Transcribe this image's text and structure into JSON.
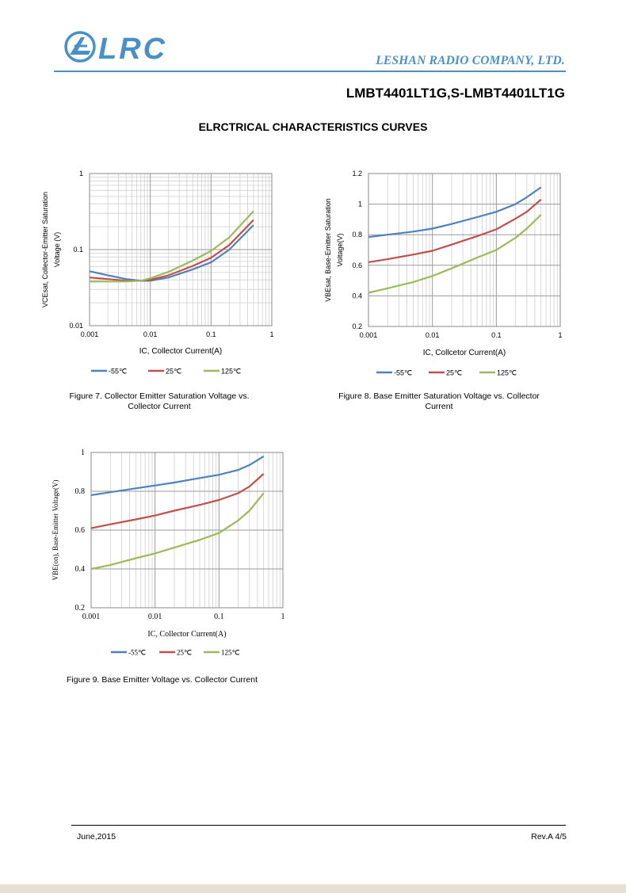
{
  "header": {
    "logo_text": "LRC",
    "company": "LESHAN RADIO COMPANY, LTD.",
    "part_number": "LMBT4401LT1G,S-LMBT4401LT1G",
    "section_title": "ELRCTRICAL CHARACTERISTICS CURVES"
  },
  "colors": {
    "brand": "#4a90c8",
    "m55": "#4f81bd",
    "r25": "#c0504d",
    "g125": "#9bbb59"
  },
  "chart_data": [
    {
      "type": "line",
      "id": "fig7",
      "xlabel": "IC, Collector Current(A)",
      "ylabel": "VCEsat, Collector-Emitter Saturation Voltage (V)",
      "ylabel_lines": [
        "VCEsat, Collector-Emitter Saturation",
        "Voltage (V)"
      ],
      "xscale": "log",
      "yscale": "log",
      "xlim": [
        0.001,
        1
      ],
      "ylim": [
        0.01,
        1
      ],
      "xticks": [
        "0.001",
        "0.01",
        "0.1",
        "1"
      ],
      "yticks": [
        "1",
        "0.1",
        "0.01"
      ],
      "legend": [
        "-55℃",
        "25℃",
        "125℃"
      ],
      "series": [
        {
          "name": "-55℃",
          "color": "#4f81bd",
          "x": [
            0.001,
            0.002,
            0.004,
            0.007,
            0.01,
            0.02,
            0.05,
            0.1,
            0.2,
            0.5
          ],
          "y": [
            0.052,
            0.046,
            0.041,
            0.039,
            0.039,
            0.043,
            0.055,
            0.068,
            0.1,
            0.21
          ]
        },
        {
          "name": "25℃",
          "color": "#c0504d",
          "x": [
            0.001,
            0.002,
            0.004,
            0.007,
            0.01,
            0.02,
            0.05,
            0.1,
            0.2,
            0.5
          ],
          "y": [
            0.043,
            0.041,
            0.039,
            0.039,
            0.04,
            0.046,
            0.061,
            0.078,
            0.115,
            0.245
          ]
        },
        {
          "name": "125℃",
          "color": "#9bbb59",
          "x": [
            0.001,
            0.002,
            0.004,
            0.007,
            0.01,
            0.02,
            0.05,
            0.1,
            0.2,
            0.5
          ],
          "y": [
            0.038,
            0.038,
            0.038,
            0.039,
            0.042,
            0.051,
            0.072,
            0.096,
            0.145,
            0.32
          ]
        }
      ],
      "caption": "Figure 7. Collector Emitter Saturation Voltage vs. Collector Current",
      "caption_lines": [
        "Figure 7. Collector Emitter Saturation Voltage vs.",
        "Collector Current"
      ]
    },
    {
      "type": "line",
      "id": "fig8",
      "xlabel": "IC, Collcetor Current(A)",
      "ylabel": "VBEsat, Base-Emitter Saturation Voltage(V)",
      "ylabel_lines": [
        "VBEsat, Base-Emitter Saturation",
        "Voltage(V)"
      ],
      "xscale": "log",
      "yscale": "linear",
      "xlim": [
        0.001,
        1
      ],
      "ylim": [
        0.2,
        1.2
      ],
      "xticks": [
        "0.001",
        "0.01",
        "0.1",
        "1"
      ],
      "yticks": [
        "1.2",
        "1",
        "0.8",
        "0.6",
        "0.4",
        "0.2"
      ],
      "legend": [
        "-55℃",
        "25℃",
        "125℃"
      ],
      "series": [
        {
          "name": "-55℃",
          "color": "#4f81bd",
          "x": [
            0.001,
            0.002,
            0.005,
            0.01,
            0.02,
            0.05,
            0.1,
            0.2,
            0.3,
            0.5
          ],
          "y": [
            0.785,
            0.8,
            0.82,
            0.84,
            0.87,
            0.915,
            0.95,
            1.0,
            1.045,
            1.11
          ]
        },
        {
          "name": "25℃",
          "color": "#c0504d",
          "x": [
            0.001,
            0.002,
            0.005,
            0.01,
            0.02,
            0.05,
            0.1,
            0.2,
            0.3,
            0.5
          ],
          "y": [
            0.62,
            0.64,
            0.67,
            0.695,
            0.735,
            0.79,
            0.835,
            0.905,
            0.95,
            1.03
          ]
        },
        {
          "name": "125℃",
          "color": "#9bbb59",
          "x": [
            0.001,
            0.002,
            0.005,
            0.01,
            0.02,
            0.05,
            0.1,
            0.2,
            0.3,
            0.5
          ],
          "y": [
            0.42,
            0.45,
            0.49,
            0.53,
            0.58,
            0.65,
            0.7,
            0.78,
            0.84,
            0.93
          ]
        }
      ],
      "caption": "Figure 8. Base Emitter Saturation Voltage vs. Collector Current",
      "caption_lines": [
        "Figure 8.  Base Emitter Saturation Voltage vs. Collector",
        "Current"
      ]
    },
    {
      "type": "line",
      "id": "fig9",
      "xlabel": "IC, Collector Current(A)",
      "ylabel": "VBE(on), Base-Emitter Voltage(V)",
      "ylabel_lines": [
        "VBE(on), Base-Emitter Voltage(V)"
      ],
      "xscale": "log",
      "yscale": "linear",
      "xlim": [
        0.001,
        1
      ],
      "ylim": [
        0.2,
        1
      ],
      "xticks": [
        "0.001",
        "0.01",
        "0.1",
        "1"
      ],
      "yticks": [
        "1",
        "0.8",
        "0.6",
        "0.4",
        "0.2"
      ],
      "legend": [
        "-55℃",
        "25℃",
        "125℃"
      ],
      "series": [
        {
          "name": "-55℃",
          "color": "#4f81bd",
          "x": [
            0.001,
            0.002,
            0.005,
            0.01,
            0.02,
            0.05,
            0.1,
            0.2,
            0.3,
            0.5
          ],
          "y": [
            0.78,
            0.795,
            0.815,
            0.83,
            0.845,
            0.868,
            0.885,
            0.91,
            0.935,
            0.98
          ]
        },
        {
          "name": "25℃",
          "color": "#c0504d",
          "x": [
            0.001,
            0.002,
            0.005,
            0.01,
            0.02,
            0.05,
            0.1,
            0.2,
            0.3,
            0.5
          ],
          "y": [
            0.61,
            0.63,
            0.655,
            0.675,
            0.7,
            0.73,
            0.755,
            0.79,
            0.825,
            0.89
          ]
        },
        {
          "name": "125℃",
          "color": "#9bbb59",
          "x": [
            0.001,
            0.002,
            0.005,
            0.01,
            0.02,
            0.05,
            0.1,
            0.2,
            0.3,
            0.5
          ],
          "y": [
            0.4,
            0.42,
            0.455,
            0.48,
            0.51,
            0.55,
            0.585,
            0.65,
            0.7,
            0.79
          ]
        }
      ],
      "caption": "Figure 9. Base Emitter Voltage vs. Collector Current",
      "caption_lines": [
        "Figure 9.  Base Emitter Voltage vs. Collector Current"
      ]
    }
  ],
  "footer": {
    "date": "June,2015",
    "revision": "Rev.A 4/5"
  }
}
